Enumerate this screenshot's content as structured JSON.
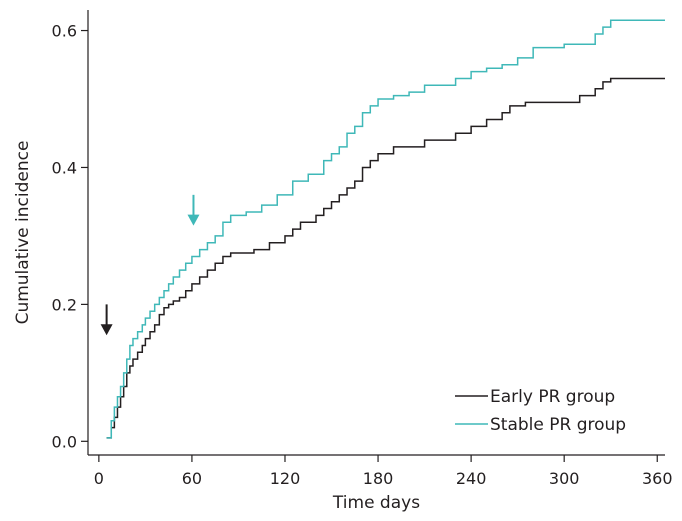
{
  "chart_data": {
    "type": "line",
    "xlabel": "Time days",
    "ylabel": "Cumulative incidence",
    "xlim": [
      -7,
      365
    ],
    "ylim": [
      -0.02,
      0.63
    ],
    "xticks": [
      0,
      60,
      120,
      180,
      240,
      300,
      360
    ],
    "yticks": [
      0.0,
      0.2,
      0.4,
      0.6
    ],
    "ytick_labels": [
      "0.0",
      "0.2",
      "0.4",
      "0.6"
    ],
    "grid": false,
    "legend_position": "bottom-right",
    "step": true,
    "series": [
      {
        "name": "Early PR group",
        "color": "#231f20",
        "x": [
          5,
          8,
          10,
          12,
          14,
          16,
          18,
          20,
          22,
          25,
          28,
          30,
          33,
          36,
          39,
          42,
          45,
          48,
          52,
          56,
          60,
          65,
          70,
          75,
          80,
          85,
          90,
          100,
          110,
          120,
          125,
          130,
          140,
          145,
          150,
          155,
          160,
          165,
          170,
          175,
          180,
          190,
          200,
          210,
          220,
          230,
          240,
          250,
          260,
          265,
          275,
          300,
          310,
          320,
          325,
          330,
          365
        ],
        "y": [
          0.005,
          0.02,
          0.035,
          0.05,
          0.065,
          0.08,
          0.1,
          0.11,
          0.12,
          0.13,
          0.14,
          0.15,
          0.16,
          0.17,
          0.185,
          0.195,
          0.2,
          0.205,
          0.21,
          0.22,
          0.23,
          0.24,
          0.25,
          0.26,
          0.27,
          0.275,
          0.275,
          0.28,
          0.29,
          0.3,
          0.31,
          0.32,
          0.33,
          0.34,
          0.35,
          0.36,
          0.37,
          0.38,
          0.4,
          0.41,
          0.42,
          0.43,
          0.43,
          0.44,
          0.44,
          0.45,
          0.46,
          0.47,
          0.48,
          0.49,
          0.495,
          0.495,
          0.505,
          0.515,
          0.525,
          0.53,
          0.53
        ]
      },
      {
        "name": "Stable PR group",
        "color": "#3fb8b8",
        "x": [
          5,
          8,
          10,
          12,
          14,
          16,
          18,
          20,
          22,
          25,
          28,
          30,
          33,
          36,
          39,
          42,
          45,
          48,
          52,
          56,
          60,
          65,
          70,
          75,
          80,
          85,
          95,
          105,
          115,
          125,
          135,
          145,
          150,
          155,
          160,
          165,
          170,
          175,
          180,
          190,
          200,
          210,
          220,
          230,
          240,
          250,
          260,
          270,
          280,
          300,
          320,
          325,
          330,
          365
        ],
        "y": [
          0.005,
          0.03,
          0.05,
          0.065,
          0.08,
          0.1,
          0.12,
          0.14,
          0.15,
          0.16,
          0.17,
          0.18,
          0.19,
          0.2,
          0.21,
          0.22,
          0.23,
          0.24,
          0.25,
          0.26,
          0.27,
          0.28,
          0.29,
          0.3,
          0.32,
          0.33,
          0.335,
          0.345,
          0.36,
          0.38,
          0.39,
          0.41,
          0.42,
          0.43,
          0.45,
          0.46,
          0.48,
          0.49,
          0.5,
          0.505,
          0.51,
          0.52,
          0.52,
          0.53,
          0.54,
          0.545,
          0.55,
          0.56,
          0.575,
          0.58,
          0.595,
          0.605,
          0.615,
          0.615
        ]
      }
    ],
    "annotations": [
      {
        "type": "arrow",
        "name": "early-pr-arrow",
        "color": "#231f20",
        "x": 5,
        "y_top": 0.2,
        "y_bottom": 0.155
      },
      {
        "type": "arrow",
        "name": "stable-pr-arrow",
        "color": "#3fb8b8",
        "x": 61,
        "y_top": 0.36,
        "y_bottom": 0.315
      }
    ]
  }
}
